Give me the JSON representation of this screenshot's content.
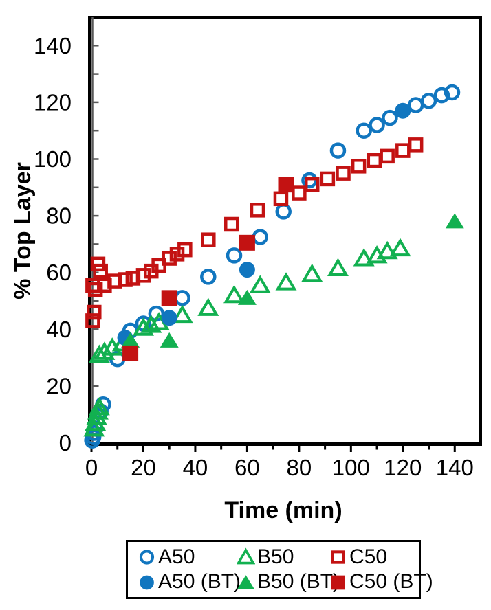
{
  "chart_data": {
    "type": "scatter",
    "title": "",
    "xlabel": "Time (min)",
    "ylabel": "% Top Layer",
    "xlim": [
      0,
      150
    ],
    "ylim": [
      0,
      150
    ],
    "grid": false,
    "legend_position": "bottom",
    "x_major_ticks": [
      0,
      20,
      40,
      60,
      80,
      100,
      120,
      140
    ],
    "x_minor_ticks": [
      10,
      30,
      50,
      70,
      90,
      110,
      130
    ],
    "y_major_ticks": [
      0,
      20,
      40,
      60,
      80,
      100,
      120,
      140
    ],
    "y_minor_ticks": [
      10,
      30,
      50,
      70,
      90,
      110,
      130
    ],
    "colors": {
      "blue": "#1176BF",
      "green": "#12B050",
      "red": "#C31212",
      "frame": "#000000",
      "axis_line": "#595959",
      "text": "#000000",
      "background": "#FFFFFF"
    },
    "series": [
      {
        "name": "A50",
        "marker": "circle",
        "fill": "open",
        "color": "#1176BF",
        "points": [
          [
            0.3,
            0.8
          ],
          [
            0.7,
            2
          ],
          [
            1,
            3.5
          ],
          [
            1.5,
            5
          ],
          [
            3.5,
            11
          ],
          [
            4.5,
            13.5
          ],
          [
            10,
            29.5
          ],
          [
            15,
            39.5
          ],
          [
            20,
            42
          ],
          [
            25,
            45.5
          ],
          [
            35,
            51
          ],
          [
            45,
            58.5
          ],
          [
            55,
            66
          ],
          [
            65,
            72.5
          ],
          [
            74,
            81.5
          ],
          [
            84,
            92.5
          ],
          [
            95,
            103
          ],
          [
            105,
            110
          ],
          [
            110,
            112
          ],
          [
            115,
            114.5
          ],
          [
            125,
            119
          ],
          [
            130,
            120.5
          ],
          [
            135,
            122.5
          ],
          [
            139,
            123.5
          ]
        ]
      },
      {
        "name": "B50",
        "marker": "triangle",
        "fill": "open",
        "color": "#12B050",
        "points": [
          [
            1,
            5
          ],
          [
            1.5,
            7
          ],
          [
            2,
            9
          ],
          [
            2.5,
            11
          ],
          [
            3,
            12.5
          ],
          [
            3,
            31
          ],
          [
            5,
            32
          ],
          [
            8,
            33.5
          ],
          [
            12,
            35
          ],
          [
            20,
            40.5
          ],
          [
            23,
            41.5
          ],
          [
            26,
            42.5
          ],
          [
            35,
            45
          ],
          [
            45,
            47.5
          ],
          [
            55,
            52
          ],
          [
            65,
            55.5
          ],
          [
            75,
            56.5
          ],
          [
            85,
            59.5
          ],
          [
            95,
            61.5
          ],
          [
            105,
            65
          ],
          [
            110,
            66
          ],
          [
            114,
            67.5
          ],
          [
            119,
            68.5
          ]
        ]
      },
      {
        "name": "C50",
        "marker": "square",
        "fill": "open",
        "color": "#C31212",
        "points": [
          [
            0.5,
            43
          ],
          [
            1,
            46
          ],
          [
            0.5,
            55.5
          ],
          [
            1.5,
            54
          ],
          [
            2.5,
            63
          ],
          [
            3.5,
            60.5
          ],
          [
            5,
            55.5
          ],
          [
            9,
            57
          ],
          [
            13,
            57.5
          ],
          [
            16,
            58
          ],
          [
            20,
            59
          ],
          [
            23,
            60.5
          ],
          [
            26,
            62.5
          ],
          [
            30,
            65
          ],
          [
            33,
            66.5
          ],
          [
            36,
            68
          ],
          [
            45,
            71.5
          ],
          [
            54,
            77
          ],
          [
            64,
            82
          ],
          [
            73,
            86
          ],
          [
            80,
            88
          ],
          [
            85,
            91
          ],
          [
            91,
            93
          ],
          [
            97,
            95
          ],
          [
            103,
            97.5
          ],
          [
            109,
            99.5
          ],
          [
            114,
            101
          ],
          [
            120,
            103
          ],
          [
            125,
            105
          ]
        ]
      },
      {
        "name": "A50 (BT)",
        "marker": "circle",
        "fill": "filled",
        "color": "#1176BF",
        "points": [
          [
            13,
            37
          ],
          [
            30,
            44
          ],
          [
            60,
            61
          ],
          [
            120,
            117
          ]
        ]
      },
      {
        "name": "B50 (BT)",
        "marker": "triangle",
        "fill": "filled",
        "color": "#12B050",
        "points": [
          [
            15,
            36
          ],
          [
            30,
            36
          ],
          [
            60,
            51
          ],
          [
            140,
            78
          ]
        ]
      },
      {
        "name": "C50 (BT)",
        "marker": "square",
        "fill": "filled",
        "color": "#C31212",
        "points": [
          [
            15,
            31.5
          ],
          [
            30,
            51
          ],
          [
            60,
            70.5
          ],
          [
            75,
            91
          ]
        ]
      }
    ]
  }
}
